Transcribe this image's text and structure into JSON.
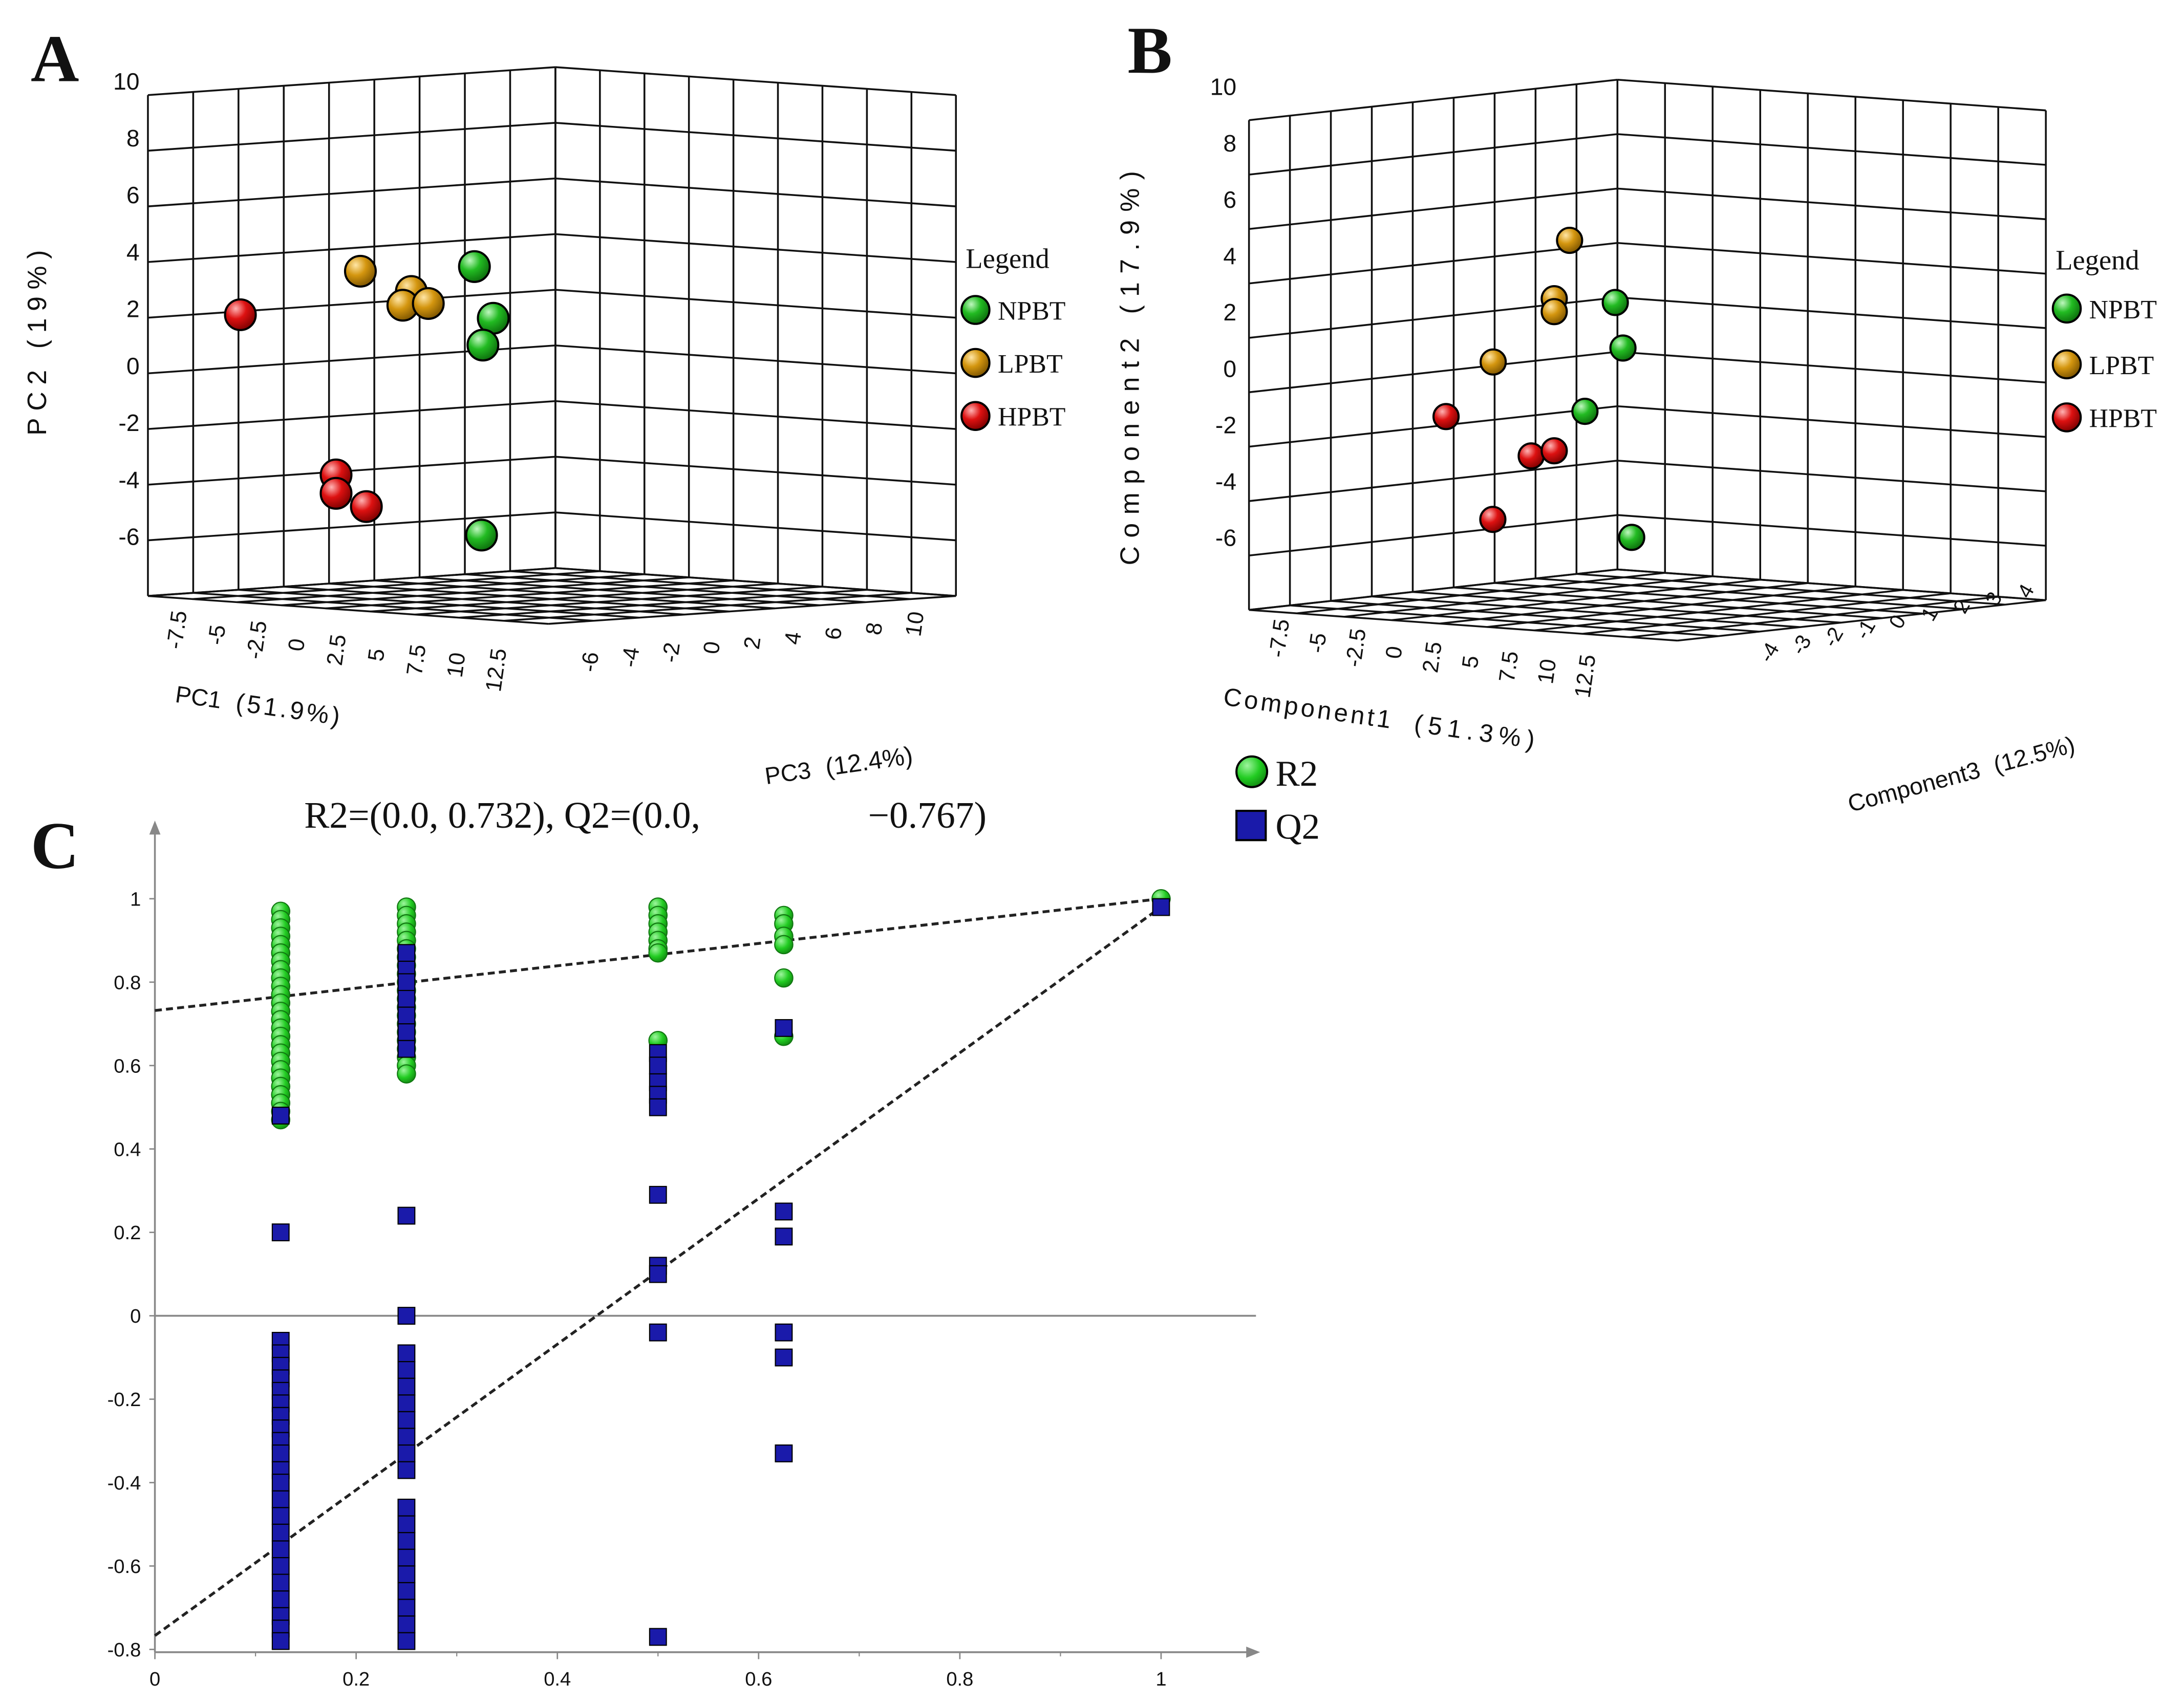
{
  "panel_labels": {
    "a": "A",
    "b": "B",
    "c": "C"
  },
  "colors": {
    "npbt": "#22bb22",
    "lpbt": "#d4960f",
    "hpbt": "#dd1111",
    "r2": "#22cc22",
    "q2": "#1a1aaa"
  },
  "chart_data": [
    {
      "type": "scatter",
      "panel": "A",
      "title": "",
      "xlabel_main": "PC1",
      "xlabel_pct": "(51.9%)",
      "ylabel": "PC2 (19%)",
      "zlabel_main": "PC3",
      "zlabel_pct": "(12.4%)",
      "x_ticks": [
        "-7.5",
        "-5",
        "-2.5",
        "0",
        "2.5",
        "5",
        "7.5",
        "10",
        "12.5"
      ],
      "y_ticks": [
        "10",
        "8",
        "6",
        "4",
        "2",
        "0",
        "-2",
        "-4",
        "-6"
      ],
      "z_ticks": [
        "-6",
        "-4",
        "-2",
        "0",
        "2",
        "4",
        "6",
        "8",
        "10"
      ],
      "legend": {
        "title": "Legend",
        "entries": [
          "NPBT",
          "LPBT",
          "HPBT"
        ]
      },
      "series": [
        {
          "name": "NPBT",
          "points": [
            [
              7.5,
              3.8,
              1
            ],
            [
              8.5,
              1.8,
              1.5
            ],
            [
              8,
              0.8,
              1
            ],
            [
              9,
              -6.5,
              -4
            ]
          ]
        },
        {
          "name": "LPBT",
          "points": [
            [
              1,
              3.9,
              0
            ],
            [
              4,
              3.0,
              0
            ],
            [
              3.5,
              2.5,
              0
            ],
            [
              5,
              2.5,
              0
            ]
          ]
        },
        {
          "name": "HPBT",
          "points": [
            [
              -6.5,
              2.6,
              2
            ],
            [
              0,
              -3.8,
              -2
            ],
            [
              0,
              -4.5,
              -2
            ],
            [
              2,
              -5.1,
              -3
            ]
          ]
        }
      ]
    },
    {
      "type": "scatter",
      "panel": "B",
      "title": "",
      "xlabel_main": "Component1",
      "xlabel_pct": "(51.3%)",
      "ylabel": "Component2 (17.9%)",
      "zlabel_main": "Component3",
      "zlabel_pct": "(12.5%)",
      "x_ticks": [
        "-7.5",
        "-5",
        "-2.5",
        "0",
        "2.5",
        "5",
        "7.5",
        "10",
        "12.5"
      ],
      "y_ticks": [
        "10",
        "8",
        "6",
        "4",
        "2",
        "0",
        "-2",
        "-4",
        "-6"
      ],
      "z_ticks": [
        "-4",
        "-3",
        "-2",
        "-1",
        "0",
        "1",
        "2",
        "3",
        "4"
      ],
      "legend": {
        "title": "Legend",
        "entries": [
          "NPBT",
          "LPBT",
          "HPBT"
        ]
      },
      "series": [
        {
          "name": "NPBT",
          "points": [
            [
              8,
              3,
              1
            ],
            [
              8.5,
              1.2,
              1
            ],
            [
              7,
              -1.2,
              0
            ],
            [
              12,
              -6.5,
              -2
            ]
          ]
        },
        {
          "name": "LPBT",
          "points": [
            [
              6,
              5.5,
              0
            ],
            [
              5,
              3.3,
              0
            ],
            [
              5,
              2.8,
              0
            ],
            [
              2,
              1.0,
              -1
            ]
          ]
        },
        {
          "name": "HPBT",
          "points": [
            [
              -4,
              -0.6,
              2
            ],
            [
              3.5,
              -2.7,
              0
            ],
            [
              5,
              -2.6,
              0
            ],
            [
              1,
              -5.0,
              0
            ]
          ]
        }
      ]
    },
    {
      "type": "scatter",
      "panel": "C",
      "title": "R2=(0.0, 0.732), Q2=(0.0,        −0.767)",
      "title_parts": {
        "r2": "R2=(0.0, 0.732), Q2=(0.0,",
        "q2": "−0.767)"
      },
      "xlabel": "",
      "ylabel": "",
      "xlim": [
        0,
        1.1
      ],
      "ylim": [
        -0.8,
        1.1
      ],
      "x_ticks": [
        "0",
        "0.2",
        "0.4",
        "0.6",
        "0.8",
        "1"
      ],
      "y_ticks": [
        "1",
        "0.8",
        "0.6",
        "0.4",
        "0.2",
        "0",
        "-0.2",
        "-0.4",
        "-0.6",
        "-0.8"
      ],
      "legend": {
        "entries": [
          "R2",
          "Q2"
        ]
      },
      "series": [
        {
          "name": "R2",
          "marker": "circle",
          "x": [
            0.125,
            0.25,
            0.5,
            0.625,
            1.0
          ],
          "values": [
            [
              0.97,
              0.95,
              0.93,
              0.91,
              0.89,
              0.87,
              0.85,
              0.83,
              0.81,
              0.79,
              0.77,
              0.75,
              0.73,
              0.71,
              0.69,
              0.67,
              0.65,
              0.63,
              0.61,
              0.59,
              0.57,
              0.55,
              0.53,
              0.51,
              0.49,
              0.47
            ],
            [
              0.98,
              0.96,
              0.94,
              0.92,
              0.9,
              0.88,
              0.86,
              0.84,
              0.82,
              0.8,
              0.78,
              0.76,
              0.74,
              0.72,
              0.7,
              0.68,
              0.66,
              0.64,
              0.62,
              0.6,
              0.58
            ],
            [
              0.98,
              0.96,
              0.94,
              0.92,
              0.9,
              0.88,
              0.87,
              0.66
            ],
            [
              0.96,
              0.94,
              0.91,
              0.89,
              0.81,
              0.67
            ],
            [
              1.0
            ]
          ]
        },
        {
          "name": "Q2",
          "marker": "square",
          "x": [
            0.125,
            0.25,
            0.5,
            0.625,
            1.0
          ],
          "values": [
            [
              0.48,
              0.2,
              -0.06,
              -0.09,
              -0.12,
              -0.15,
              -0.18,
              -0.21,
              -0.24,
              -0.27,
              -0.3,
              -0.33,
              -0.37,
              -0.4,
              -0.44,
              -0.48,
              -0.52,
              -0.56,
              -0.6,
              -0.64,
              -0.68,
              -0.72,
              -0.75,
              -0.78
            ],
            [
              0.87,
              0.83,
              0.8,
              0.76,
              0.72,
              0.68,
              0.64,
              0.24,
              0.0,
              -0.09,
              -0.13,
              -0.17,
              -0.21,
              -0.25,
              -0.29,
              -0.33,
              -0.37,
              -0.46,
              -0.5,
              -0.54,
              -0.58,
              -0.62,
              -0.66,
              -0.7,
              -0.74,
              -0.78
            ],
            [
              0.63,
              0.6,
              0.56,
              0.53,
              0.5,
              0.29,
              0.12,
              0.1,
              -0.04,
              -0.77
            ],
            [
              0.69,
              0.25,
              0.19,
              -0.04,
              -0.1,
              -0.33
            ],
            [
              0.98
            ]
          ]
        }
      ],
      "trend_lines": [
        {
          "name": "R2",
          "intercept": 0.732,
          "end": [
            1.0,
            1.0
          ]
        },
        {
          "name": "Q2",
          "intercept": -0.767,
          "end": [
            1.0,
            0.98
          ]
        }
      ]
    }
  ]
}
